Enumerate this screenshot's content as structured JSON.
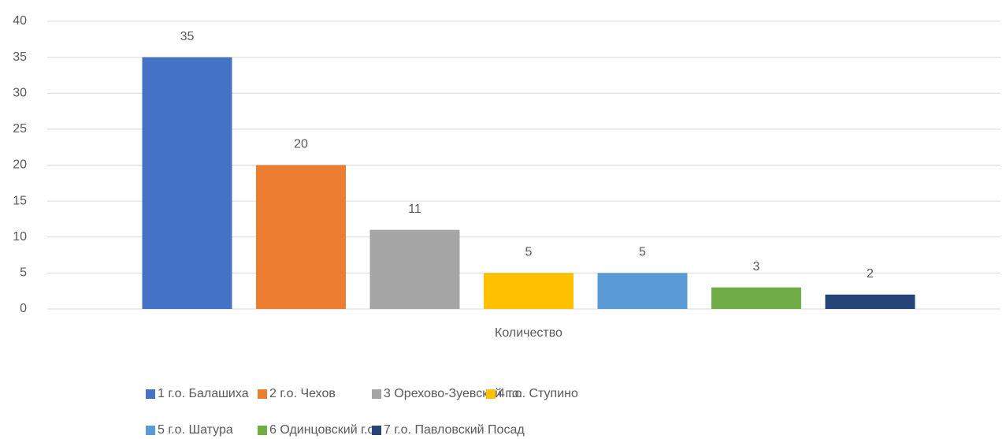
{
  "chart_data": {
    "type": "bar",
    "categories": [
      "Количество"
    ],
    "series": [
      {
        "name": "1 г.о. Балашиха",
        "color": "#4472c4",
        "values": [
          35
        ]
      },
      {
        "name": "2 г.о. Чехов",
        "color": "#ed7d31",
        "values": [
          20
        ]
      },
      {
        "name": "3 Орехово-Зуевский г.о.",
        "color": "#a5a5a5",
        "values": [
          11
        ]
      },
      {
        "name": "4 г.о. Ступино",
        "color": "#ffc000",
        "values": [
          5
        ]
      },
      {
        "name": "5 г.о. Шатура",
        "color": "#5b9bd5",
        "values": [
          5
        ]
      },
      {
        "name": "6 Одинцовский г.о.",
        "color": "#70ad47",
        "values": [
          3
        ]
      },
      {
        "name": "7 г.о. Павловский Посад",
        "color": "#264478",
        "values": [
          2
        ]
      }
    ],
    "ylim": [
      0,
      40
    ],
    "yticks": [
      0,
      5,
      10,
      15,
      20,
      25,
      30,
      35,
      40
    ],
    "grid": true,
    "legend": "bottom"
  }
}
